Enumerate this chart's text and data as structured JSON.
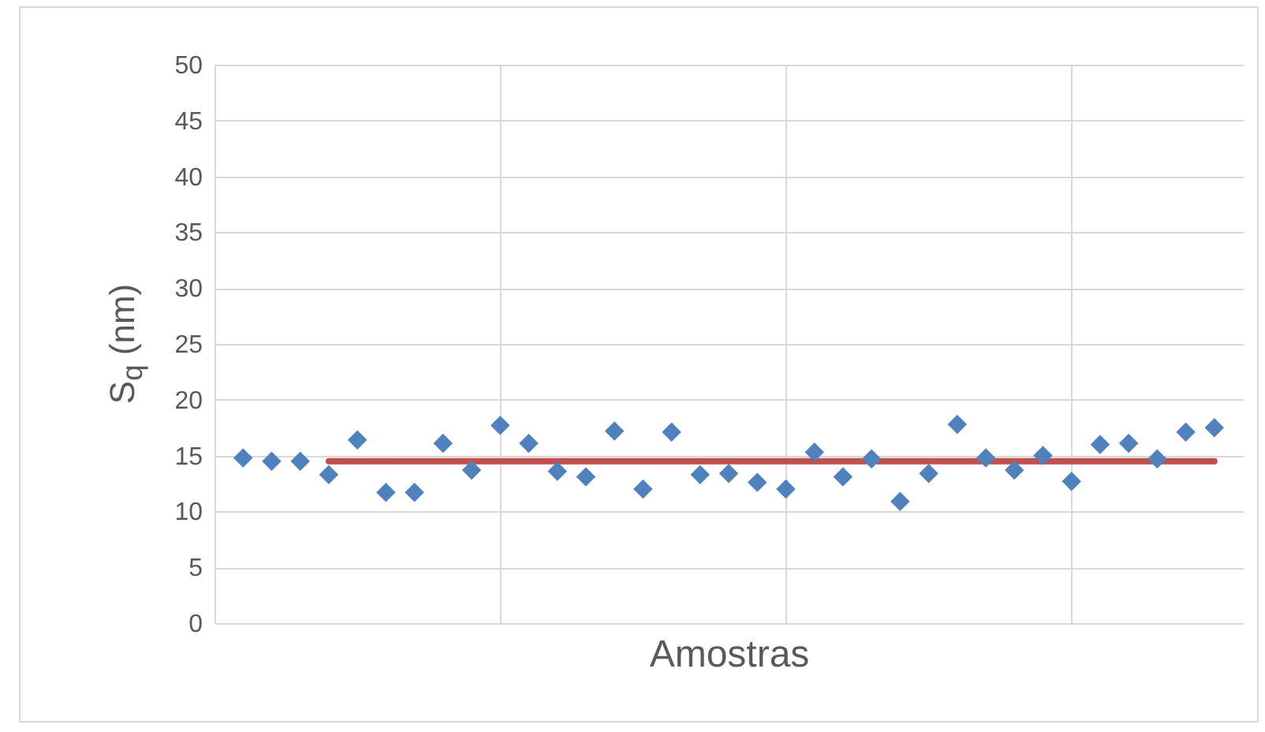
{
  "chart_data": {
    "type": "scatter",
    "xlabel": "Amostras",
    "ylabel": "S$_{q}$ (nm)",
    "categories": [
      null,
      null,
      null,
      null,
      null,
      null,
      null,
      null,
      null,
      null,
      null,
      null,
      null,
      null,
      null,
      null,
      null,
      null,
      null,
      null,
      null,
      null,
      null,
      null,
      null,
      null,
      null,
      null,
      null,
      null,
      null,
      null,
      null,
      null,
      null
    ],
    "ylim": [
      0,
      50
    ],
    "yticks": [
      0,
      5,
      10,
      15,
      20,
      25,
      30,
      35,
      40,
      45,
      50
    ],
    "grid": true,
    "series": [
      {
        "color": "#4f81bd",
        "marker": "diamond",
        "values": [
          14.8,
          14.5,
          14.5,
          13.3,
          16.4,
          11.7,
          11.7,
          16.1,
          13.7,
          17.7,
          16.1,
          13.6,
          13.1,
          17.2,
          12.0,
          17.1,
          13.3,
          13.4,
          12.6,
          12.0,
          15.3,
          13.1,
          14.7,
          10.9,
          13.4,
          17.8,
          14.8,
          13.7,
          15.0,
          12.7,
          16.0,
          16.1,
          14.7,
          17.1,
          17.5
        ]
      },
      {
        "type": "line",
        "color": "#c0504d",
        "values": [
          null,
          null,
          null,
          14.5,
          14.5,
          14.5,
          14.5,
          14.5,
          14.5,
          14.5,
          14.5,
          14.5,
          14.5,
          14.5,
          14.5,
          14.5,
          14.5,
          14.5,
          14.5,
          14.5,
          14.5,
          14.5,
          14.5,
          14.5,
          14.5,
          14.5,
          14.5,
          14.5,
          14.5,
          14.5,
          14.5,
          14.5,
          14.5,
          14.5,
          14.5
        ]
      }
    ]
  }
}
